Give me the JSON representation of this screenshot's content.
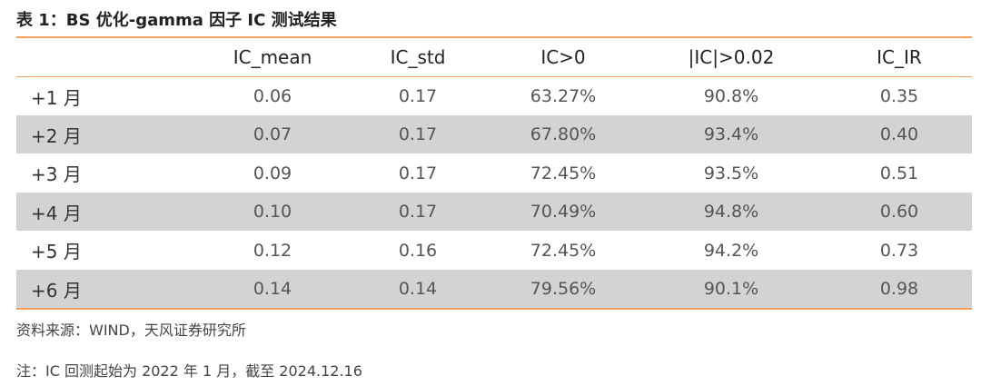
{
  "title": "表 1：BS 优化-gamma 因子 IC 测试结果",
  "table": {
    "header": [
      "",
      "IC_mean",
      "IC_std",
      "IC>0",
      "|IC|>0.02",
      "IC_IR"
    ],
    "rows": [
      [
        "+1 月",
        "0.06",
        "0.17",
        "63.27%",
        "90.8%",
        "0.35"
      ],
      [
        "+2 月",
        "0.07",
        "0.17",
        "67.80%",
        "93.4%",
        "0.40"
      ],
      [
        "+3 月",
        "0.09",
        "0.17",
        "72.45%",
        "93.5%",
        "0.51"
      ],
      [
        "+4 月",
        "0.10",
        "0.17",
        "70.49%",
        "94.8%",
        "0.60"
      ],
      [
        "+5 月",
        "0.12",
        "0.16",
        "72.45%",
        "94.2%",
        "0.73"
      ],
      [
        "+6 月",
        "0.14",
        "0.14",
        "79.56%",
        "90.1%",
        "0.98"
      ]
    ]
  },
  "source": "资料来源：WIND，天风证券研究所",
  "note": "注：IC 回测起始为 2022 年 1 月，截至 2024.12.16"
}
